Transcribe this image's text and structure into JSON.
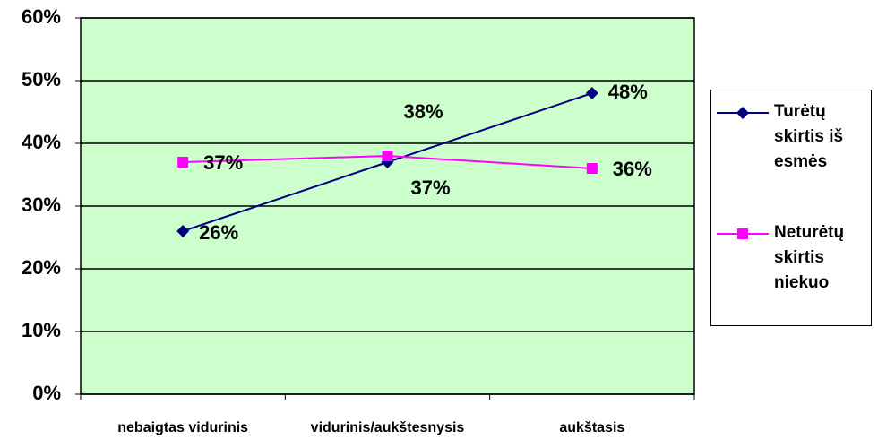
{
  "chart_data": {
    "type": "line",
    "categories": [
      "nebaigtas vidurinis",
      "vidurinis/aukštesnysis",
      "aukštasis"
    ],
    "series": [
      {
        "name": "Turėtų skirtis iš esmės",
        "color": "#000080",
        "marker": "diamond",
        "values": [
          26,
          37,
          48
        ],
        "value_labels": [
          "26%",
          "37%",
          "48%"
        ]
      },
      {
        "name": "Neturėtų skirtis niekuo",
        "color": "#ff00ff",
        "marker": "square",
        "values": [
          37,
          38,
          36
        ],
        "value_labels": [
          "37%",
          "38%",
          "36%"
        ]
      }
    ],
    "ylim": [
      0,
      60
    ],
    "yticks": [
      {
        "value": 0,
        "label": "0%"
      },
      {
        "value": 10,
        "label": "10%"
      },
      {
        "value": 20,
        "label": "20%"
      },
      {
        "value": 30,
        "label": "30%"
      },
      {
        "value": 40,
        "label": "40%"
      },
      {
        "value": 50,
        "label": "50%"
      },
      {
        "value": 60,
        "label": "60%"
      }
    ],
    "grid": true,
    "legend": "right",
    "background": "#ccffcc"
  }
}
